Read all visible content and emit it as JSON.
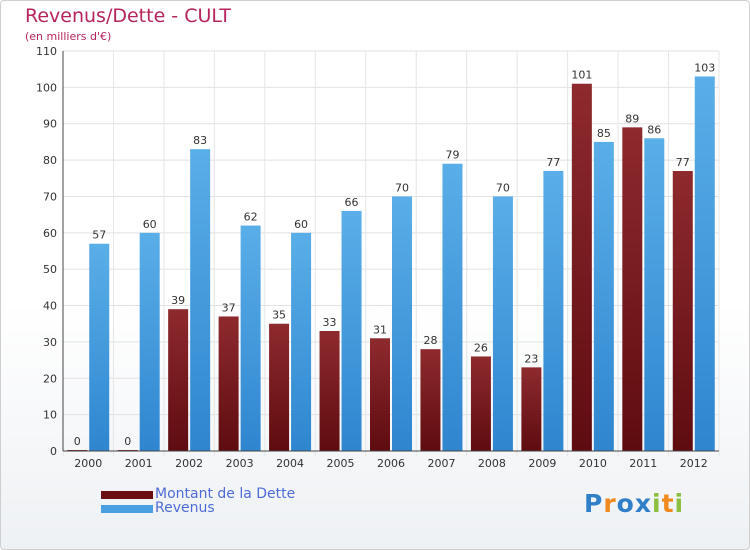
{
  "header": {
    "title": "Revenus/Dette - CULT",
    "subtitle": "(en milliers d'€)"
  },
  "chart_data": {
    "type": "bar",
    "categories": [
      "2000",
      "2001",
      "2002",
      "2003",
      "2004",
      "2005",
      "2006",
      "2007",
      "2008",
      "2009",
      "2010",
      "2011",
      "2012"
    ],
    "series": [
      {
        "name": "Montant de la Dette",
        "color": "#7a1a1e",
        "values": [
          0,
          0,
          39,
          37,
          35,
          33,
          31,
          28,
          26,
          23,
          101,
          89,
          77
        ]
      },
      {
        "name": "Revenus",
        "color": "#4a9fe0",
        "values": [
          57,
          60,
          83,
          62,
          60,
          66,
          70,
          79,
          70,
          77,
          85,
          86,
          103
        ]
      }
    ],
    "ylim": [
      0,
      110
    ],
    "yticks": [
      "0",
      "10",
      "20",
      "30",
      "40",
      "50",
      "60",
      "70",
      "80",
      "90",
      "100",
      "110"
    ],
    "grid": true,
    "legend_position": "bottom-left"
  },
  "legend": {
    "items": [
      {
        "label": "Montant de la Dette",
        "color": "#6a0f12"
      },
      {
        "label": "Revenus",
        "color": "#4a9fe0"
      }
    ]
  },
  "logo": {
    "letters": [
      "P",
      "r",
      "o",
      "x",
      "i",
      "t",
      "i"
    ],
    "colors": [
      "#2f7fc9",
      "#f08a1f",
      "#2f7fc9",
      "#2f7fc9",
      "#8cbf3f",
      "#f08a1f",
      "#8cbf3f"
    ]
  }
}
